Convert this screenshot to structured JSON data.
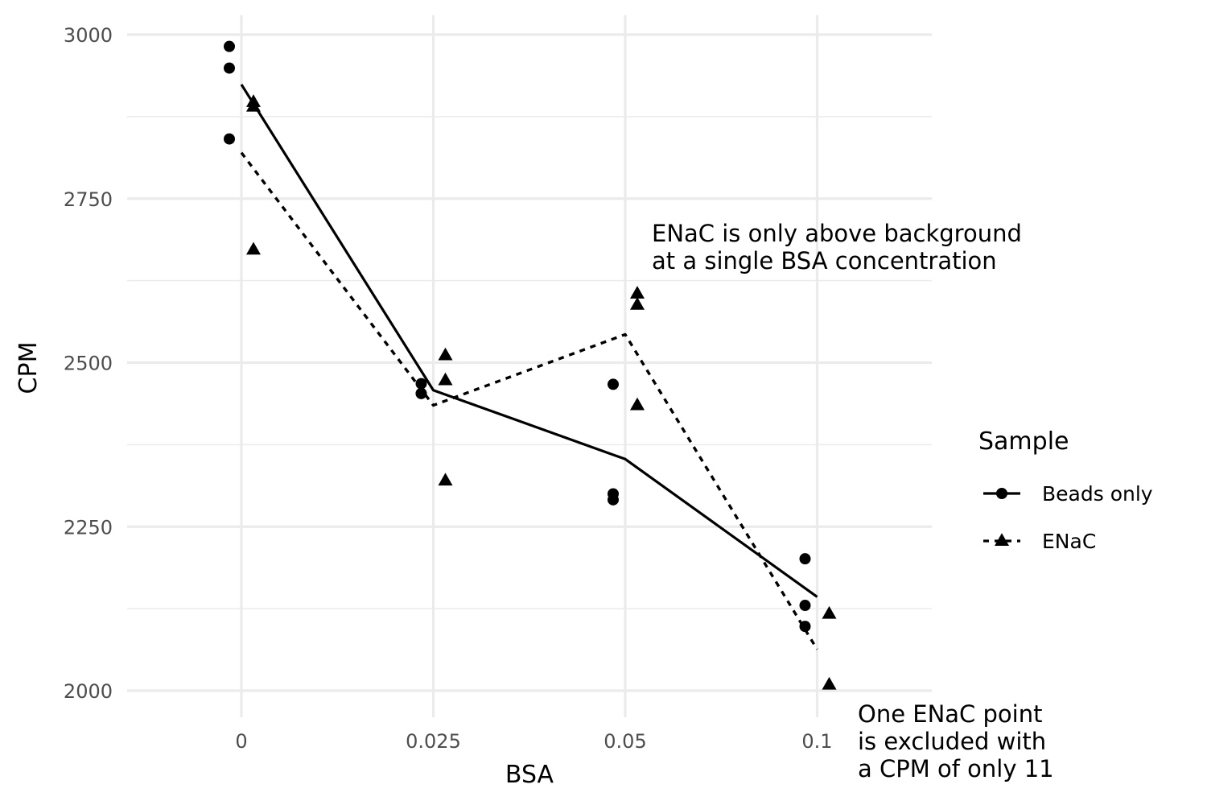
{
  "chart_data": {
    "type": "scatter",
    "title": "",
    "xlabel": "BSA",
    "ylabel": "CPM",
    "x_categories": [
      "0",
      "0.025",
      "0.05",
      "0.1"
    ],
    "ylim": [
      1950,
      3050
    ],
    "y_ticks": [
      2000,
      2250,
      2500,
      2750,
      3000
    ],
    "y_minor_ticks": [
      2125,
      2375,
      2625,
      2875
    ],
    "grid": true,
    "legend": {
      "title": "Sample",
      "placement": "right",
      "entries": [
        {
          "name": "Beads only",
          "marker": "circle",
          "line": "solid"
        },
        {
          "name": "ENaC",
          "marker": "triangle",
          "line": "dashed"
        }
      ]
    },
    "series": [
      {
        "name": "Beads only",
        "marker": "circle",
        "line": "solid",
        "color": "#000000",
        "points": [
          {
            "x": "0",
            "y": 2982
          },
          {
            "x": "0",
            "y": 2949
          },
          {
            "x": "0",
            "y": 2841
          },
          {
            "x": "0.025",
            "y": 2468
          },
          {
            "x": "0.025",
            "y": 2453
          },
          {
            "x": "0.025",
            "y": 2453
          },
          {
            "x": "0.05",
            "y": 2467
          },
          {
            "x": "0.05",
            "y": 2300
          },
          {
            "x": "0.05",
            "y": 2291
          },
          {
            "x": "0.1",
            "y": 2201
          },
          {
            "x": "0.1",
            "y": 2130
          },
          {
            "x": "0.1",
            "y": 2098
          }
        ],
        "means": [
          2924,
          2458,
          2353,
          2143
        ]
      },
      {
        "name": "ENaC",
        "marker": "triangle",
        "line": "dashed",
        "color": "#000000",
        "points": [
          {
            "x": "0",
            "y": 2897
          },
          {
            "x": "0",
            "y": 2890
          },
          {
            "x": "0",
            "y": 2672
          },
          {
            "x": "0.025",
            "y": 2511
          },
          {
            "x": "0.025",
            "y": 2473
          },
          {
            "x": "0.025",
            "y": 2320
          },
          {
            "x": "0.05",
            "y": 2605
          },
          {
            "x": "0.05",
            "y": 2588
          },
          {
            "x": "0.05",
            "y": 2435
          },
          {
            "x": "0.1",
            "y": 2117
          },
          {
            "x": "0.1",
            "y": 2009
          }
        ],
        "means": [
          2820,
          2435,
          2543,
          2063
        ]
      }
    ],
    "annotations": [
      {
        "id": "enac-background",
        "x": "0.05",
        "y": 2700,
        "lines": [
          "ENaC is only above background",
          "at a single BSA concentration"
        ]
      },
      {
        "id": "excluded-point",
        "x": "0.1",
        "y": 1950,
        "lines": [
          "One ENaC point",
          "is excluded with",
          "a CPM of only 11"
        ]
      }
    ]
  }
}
